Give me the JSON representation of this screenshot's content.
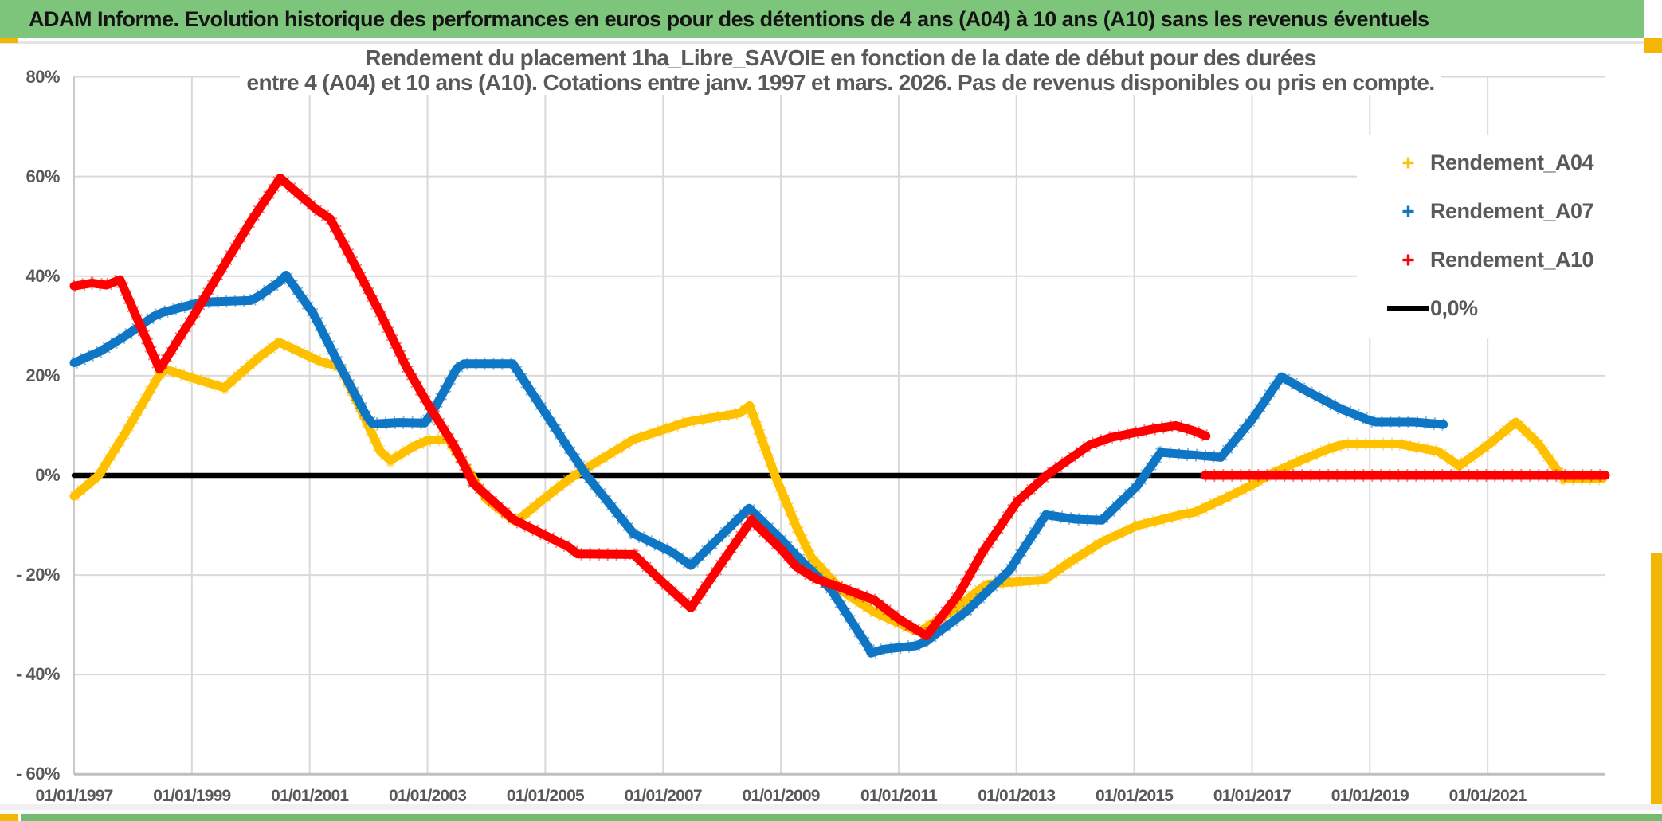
{
  "header": {
    "title": "ADAM Informe. Evolution historique des performances en euros pour des détentions de 4 ans (A04) à 10 ans (A10) sans les revenus éventuels"
  },
  "chart_data": {
    "type": "line",
    "title_line1": "Rendement du placement 1ha_Libre_SAVOIE en fonction de la date de début pour des durées",
    "title_line2": "entre 4 (A04) et 10 ans (A10). Cotations entre janv. 1997 et mars. 2026. Pas de revenus disponibles ou pris en compte.",
    "grid": true,
    "legend_position": "top-right",
    "x_axis": {
      "labels": [
        "01/01/1997",
        "01/01/1999",
        "01/01/2001",
        "01/01/2003",
        "01/01/2005",
        "01/01/2007",
        "01/01/2009",
        "01/01/2011",
        "01/01/2013",
        "01/01/2015",
        "01/01/2017",
        "01/01/2019",
        "01/01/2021"
      ],
      "label_years": [
        1997,
        1999,
        2001,
        2003,
        2005,
        2007,
        2009,
        2011,
        2013,
        2015,
        2017,
        2019,
        2021
      ],
      "range_years": [
        1997,
        2023
      ]
    },
    "y_axis": {
      "labels": [
        "80%",
        "60%",
        "40%",
        "20%",
        "0%",
        "- 20%",
        "- 40%",
        "- 60%"
      ],
      "values": [
        80,
        60,
        40,
        20,
        0,
        -20,
        -40,
        -60
      ],
      "range": [
        -60,
        80
      ],
      "unit": "percent"
    },
    "draw_order": [
      "0,0%",
      "Rendement_A04",
      "Rendement_A07",
      "Rendement_A10"
    ],
    "series": [
      {
        "name": "Rendement_A04",
        "color": "#FFC000",
        "marker": "plus",
        "segments": [
          [
            [
              1997.0,
              -4.2
            ],
            [
              1997.42,
              0
            ],
            [
              1997.9,
              9.1
            ],
            [
              1998.45,
              20.2
            ],
            [
              1998.55,
              21.3
            ],
            [
              1999.1,
              19.2
            ],
            [
              1999.55,
              17.6
            ],
            [
              2000.17,
              24.0
            ],
            [
              2000.48,
              26.7
            ],
            [
              2001.06,
              23.5
            ],
            [
              2001.22,
              22.7
            ],
            [
              2001.52,
              21.9
            ],
            [
              2002.2,
              4.8
            ],
            [
              2002.37,
              3.0
            ],
            [
              2002.78,
              5.9
            ],
            [
              2003.0,
              7.0
            ],
            [
              2003.35,
              7.3
            ],
            [
              2004.0,
              -4.8
            ],
            [
              2004.5,
              -9.3
            ],
            [
              2005.2,
              -2.6
            ],
            [
              2005.5,
              0
            ],
            [
              2006.5,
              7.2
            ],
            [
              2007.4,
              10.7
            ],
            [
              2008.3,
              12.5
            ],
            [
              2008.47,
              14.0
            ],
            [
              2008.9,
              0
            ],
            [
              2009.27,
              -10.5
            ],
            [
              2009.52,
              -16.5
            ],
            [
              2010.06,
              -23.4
            ],
            [
              2010.58,
              -27.4
            ],
            [
              2011.17,
              -30.6
            ],
            [
              2011.35,
              -31.4
            ],
            [
              2011.98,
              -26.6
            ],
            [
              2012.43,
              -22.4
            ],
            [
              2012.52,
              -21.8
            ],
            [
              2013.47,
              -21.0
            ],
            [
              2013.92,
              -17.3
            ],
            [
              2014.46,
              -13.3
            ],
            [
              2015.05,
              -10.1
            ],
            [
              2015.76,
              -8.0
            ],
            [
              2016.03,
              -7.4
            ],
            [
              2016.56,
              -4.5
            ],
            [
              2017.05,
              -1.6
            ],
            [
              2017.26,
              0
            ],
            [
              2017.77,
              2.7
            ],
            [
              2018.25,
              5.1
            ],
            [
              2018.45,
              5.9
            ],
            [
              2018.6,
              6.3
            ],
            [
              2019.5,
              6.3
            ],
            [
              2020.16,
              4.8
            ],
            [
              2020.52,
              1.9
            ],
            [
              2021.04,
              6.4
            ],
            [
              2021.48,
              10.7
            ],
            [
              2021.86,
              6.4
            ],
            [
              2022.16,
              1.4
            ],
            [
              2022.3,
              -0.7
            ],
            [
              2022.95,
              -0.7
            ]
          ]
        ]
      },
      {
        "name": "Rendement_A07",
        "color": "#0E76C4",
        "marker": "plus",
        "segments": [
          [
            [
              1997.0,
              22.6
            ],
            [
              1997.46,
              25.0
            ],
            [
              1997.9,
              28.2
            ],
            [
              1998.35,
              31.9
            ],
            [
              1998.5,
              32.7
            ],
            [
              1999.0,
              34.3
            ],
            [
              1999.2,
              34.8
            ],
            [
              2000.0,
              35.1
            ],
            [
              2000.17,
              36.2
            ],
            [
              2000.48,
              38.8
            ],
            [
              2000.6,
              40.2
            ],
            [
              2001.06,
              32.5
            ],
            [
              2001.52,
              21.8
            ],
            [
              2001.97,
              11.8
            ],
            [
              2002.07,
              10.3
            ],
            [
              2002.5,
              10.6
            ],
            [
              2002.95,
              10.5
            ],
            [
              2003.05,
              12.0
            ],
            [
              2003.5,
              21.5
            ],
            [
              2003.62,
              22.4
            ],
            [
              2004.45,
              22.4
            ],
            [
              2005.0,
              12.5
            ],
            [
              2005.7,
              0
            ],
            [
              2006.5,
              -11.7
            ],
            [
              2007.15,
              -15.4
            ],
            [
              2007.47,
              -18.1
            ],
            [
              2008.46,
              -6.6
            ],
            [
              2009.0,
              -12.8
            ],
            [
              2009.27,
              -16.2
            ],
            [
              2009.85,
              -22.9
            ],
            [
              2010.49,
              -34.6
            ],
            [
              2010.53,
              -35.7
            ],
            [
              2010.75,
              -34.9
            ],
            [
              2011.3,
              -34.2
            ],
            [
              2011.47,
              -33.3
            ],
            [
              2012.16,
              -27.2
            ],
            [
              2012.88,
              -19.1
            ],
            [
              2013.5,
              -7.9
            ],
            [
              2014.0,
              -8.8
            ],
            [
              2014.45,
              -9.0
            ],
            [
              2015.05,
              -2.1
            ],
            [
              2015.45,
              4.6
            ],
            [
              2016.0,
              4.1
            ],
            [
              2016.47,
              3.6
            ],
            [
              2017.0,
              11.2
            ],
            [
              2017.5,
              19.8
            ],
            [
              2017.9,
              17.1
            ],
            [
              2018.5,
              13.4
            ],
            [
              2019.0,
              11.0
            ],
            [
              2019.1,
              10.7
            ],
            [
              2019.75,
              10.7
            ],
            [
              2020.25,
              10.2
            ]
          ]
        ]
      },
      {
        "name": "Rendement_A10",
        "color": "#FF0000",
        "marker": "plus",
        "segments": [
          [
            [
              1997.0,
              38.0
            ],
            [
              1997.3,
              38.6
            ],
            [
              1997.55,
              38.2
            ],
            [
              1997.78,
              39.3
            ],
            [
              1998.45,
              21.3
            ],
            [
              1999.0,
              31.5
            ],
            [
              2000.0,
              51.0
            ],
            [
              2000.5,
              59.7
            ],
            [
              2001.1,
              53.5
            ],
            [
              2001.35,
              51.5
            ],
            [
              2002.2,
              32.5
            ],
            [
              2002.64,
              21.8
            ],
            [
              2003.05,
              13.5
            ],
            [
              2003.45,
              6.0
            ],
            [
              2003.78,
              -1.6
            ],
            [
              2004.45,
              -8.8
            ],
            [
              2005.4,
              -14.4
            ],
            [
              2005.55,
              -15.8
            ],
            [
              2006.5,
              -15.9
            ],
            [
              2007.0,
              -21.5
            ],
            [
              2007.47,
              -26.6
            ],
            [
              2008.0,
              -17.5
            ],
            [
              2008.5,
              -9.0
            ],
            [
              2009.0,
              -14.8
            ],
            [
              2009.27,
              -18.4
            ],
            [
              2009.6,
              -20.8
            ],
            [
              2010.04,
              -22.6
            ],
            [
              2010.58,
              -25.0
            ],
            [
              2011.0,
              -28.8
            ],
            [
              2011.47,
              -32.2
            ],
            [
              2012.02,
              -23.9
            ],
            [
              2012.43,
              -15.3
            ],
            [
              2013.02,
              -5.2
            ],
            [
              2013.51,
              0
            ],
            [
              2014.24,
              6.1
            ],
            [
              2014.6,
              7.6
            ],
            [
              2015.36,
              9.4
            ],
            [
              2015.7,
              10.0
            ],
            [
              2016.0,
              9.0
            ],
            [
              2016.22,
              7.9
            ]
          ],
          [
            [
              2016.2,
              0
            ],
            [
              2023.0,
              0
            ]
          ]
        ]
      },
      {
        "name": "0,0%",
        "color": "#000000",
        "marker": "line",
        "segments": [
          [
            [
              1997.0,
              0
            ],
            [
              2023.0,
              0
            ]
          ]
        ]
      }
    ],
    "legend": {
      "entries": [
        {
          "label": "Rendement_A04",
          "color": "#FFC000",
          "marker": "plus"
        },
        {
          "label": "Rendement_A07",
          "color": "#0E76C4",
          "marker": "plus"
        },
        {
          "label": "Rendement_A10",
          "color": "#FF0000",
          "marker": "plus"
        },
        {
          "label": "0,0%",
          "color": "#000000",
          "marker": "line"
        }
      ]
    }
  },
  "colors": {
    "banner_green": "#7EC57C",
    "bottom_green": "#74BA71",
    "gold_accent": "#F2B705",
    "gridline": "#D9D9D9",
    "axis_line": "#BFBFBF",
    "text_gray": "#595959"
  }
}
